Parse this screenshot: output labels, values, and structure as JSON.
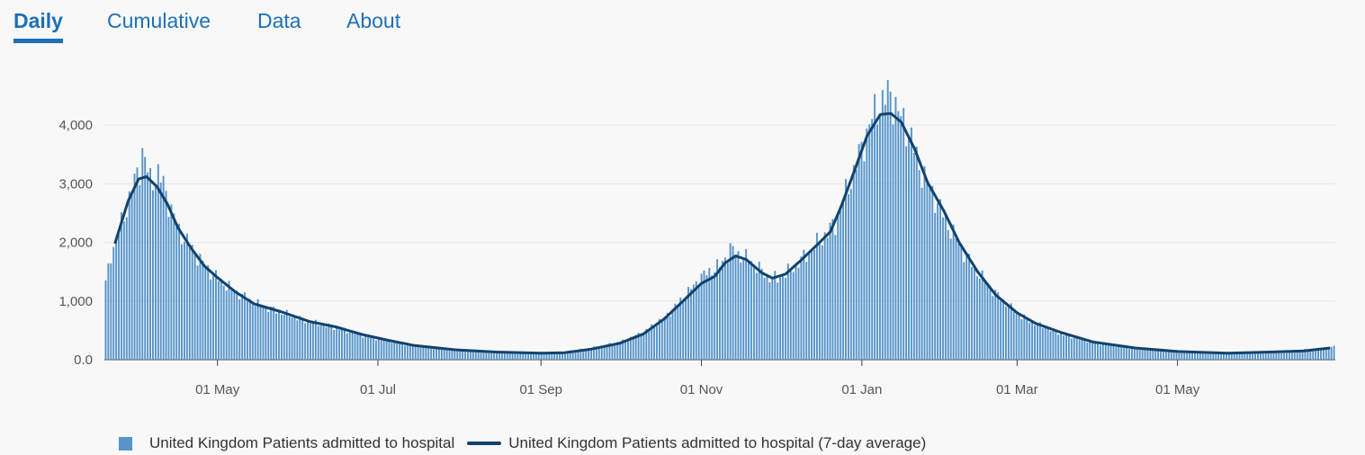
{
  "tabs": [
    {
      "label": "Daily",
      "active": true
    },
    {
      "label": "Cumulative",
      "active": false
    },
    {
      "label": "Data",
      "active": false
    },
    {
      "label": "About",
      "active": false
    }
  ],
  "colors": {
    "bar": "#5694ca",
    "line": "#12436d",
    "tab": "#1d70b8",
    "grid": "#e6e6e6"
  },
  "chart_data": {
    "type": "bar",
    "x_start": "2020-03-19",
    "x_end": "2021-06-30",
    "ylim": [
      0,
      4600
    ],
    "yticks": [
      0,
      1000,
      2000,
      3000,
      4000
    ],
    "ytick_labels": [
      "0.0",
      "1,000",
      "2,000",
      "3,000",
      "4,000"
    ],
    "xticks": [
      "2020-05-01",
      "2020-07-01",
      "2020-09-01",
      "2020-11-01",
      "2021-01-01",
      "2021-03-01",
      "2021-05-01"
    ],
    "xtick_labels": [
      "01 May",
      "01 Jul",
      "01 Sep",
      "01 Nov",
      "01 Jan",
      "01 Mar",
      "01 May"
    ],
    "grid": true,
    "legend_position": "bottom",
    "series": [
      {
        "name": "United Kingdom Patients admitted to hospital",
        "type": "bar",
        "points": [
          [
            "2020-03-19",
            1300
          ],
          [
            "2020-03-21",
            1800
          ],
          [
            "2020-03-23",
            2050
          ],
          [
            "2020-03-26",
            2450
          ],
          [
            "2020-03-29",
            2900
          ],
          [
            "2020-04-01",
            3300
          ],
          [
            "2020-04-02",
            3550
          ],
          [
            "2020-04-05",
            3050
          ],
          [
            "2020-04-08",
            3150
          ],
          [
            "2020-04-10",
            3000
          ],
          [
            "2020-04-13",
            2550
          ],
          [
            "2020-04-16",
            2200
          ],
          [
            "2020-04-20",
            1950
          ],
          [
            "2020-04-24",
            1700
          ],
          [
            "2020-04-28",
            1500
          ],
          [
            "2020-05-03",
            1300
          ],
          [
            "2020-05-08",
            1150
          ],
          [
            "2020-05-15",
            960
          ],
          [
            "2020-05-25",
            800
          ],
          [
            "2020-06-05",
            640
          ],
          [
            "2020-06-15",
            540
          ],
          [
            "2020-06-25",
            410
          ],
          [
            "2020-07-05",
            320
          ],
          [
            "2020-07-15",
            230
          ],
          [
            "2020-07-30",
            170
          ],
          [
            "2020-08-15",
            130
          ],
          [
            "2020-08-31",
            110
          ],
          [
            "2020-09-10",
            130
          ],
          [
            "2020-09-20",
            200
          ],
          [
            "2020-10-01",
            300
          ],
          [
            "2020-10-10",
            470
          ],
          [
            "2020-10-18",
            720
          ],
          [
            "2020-10-25",
            1050
          ],
          [
            "2020-11-01",
            1420
          ],
          [
            "2020-11-05",
            1530
          ],
          [
            "2020-11-08",
            1600
          ],
          [
            "2020-11-12",
            1880
          ],
          [
            "2020-11-15",
            1800
          ],
          [
            "2020-11-20",
            1680
          ],
          [
            "2020-11-26",
            1420
          ],
          [
            "2020-11-30",
            1380
          ],
          [
            "2020-12-04",
            1500
          ],
          [
            "2020-12-10",
            1740
          ],
          [
            "2020-12-16",
            2020
          ],
          [
            "2020-12-22",
            2320
          ],
          [
            "2020-12-27",
            2950
          ],
          [
            "2021-01-01",
            3600
          ],
          [
            "2021-01-04",
            4000
          ],
          [
            "2021-01-07",
            4300
          ],
          [
            "2021-01-12",
            4550
          ],
          [
            "2021-01-15",
            4200
          ],
          [
            "2021-01-19",
            3900
          ],
          [
            "2021-01-23",
            3300
          ],
          [
            "2021-01-28",
            2850
          ],
          [
            "2021-02-03",
            2300
          ],
          [
            "2021-02-08",
            1900
          ],
          [
            "2021-02-14",
            1500
          ],
          [
            "2021-02-21",
            1130
          ],
          [
            "2021-03-01",
            790
          ],
          [
            "2021-03-08",
            620
          ],
          [
            "2021-03-18",
            440
          ],
          [
            "2021-03-30",
            290
          ],
          [
            "2021-04-15",
            190
          ],
          [
            "2021-05-01",
            140
          ],
          [
            "2021-05-15",
            110
          ],
          [
            "2021-06-01",
            130
          ],
          [
            "2021-06-15",
            150
          ],
          [
            "2021-06-25",
            190
          ],
          [
            "2021-06-30",
            220
          ]
        ]
      },
      {
        "name": "United Kingdom Patients admitted to hospital (7-day average)",
        "type": "line",
        "points": [
          [
            "2020-03-23",
            1980
          ],
          [
            "2020-03-28",
            2700
          ],
          [
            "2020-04-01",
            3080
          ],
          [
            "2020-04-04",
            3120
          ],
          [
            "2020-04-08",
            2950
          ],
          [
            "2020-04-12",
            2650
          ],
          [
            "2020-04-16",
            2250
          ],
          [
            "2020-04-21",
            1900
          ],
          [
            "2020-04-26",
            1600
          ],
          [
            "2020-05-01",
            1400
          ],
          [
            "2020-05-08",
            1150
          ],
          [
            "2020-05-15",
            950
          ],
          [
            "2020-05-25",
            820
          ],
          [
            "2020-06-05",
            650
          ],
          [
            "2020-06-15",
            560
          ],
          [
            "2020-06-25",
            430
          ],
          [
            "2020-07-05",
            330
          ],
          [
            "2020-07-15",
            240
          ],
          [
            "2020-07-30",
            170
          ],
          [
            "2020-08-15",
            130
          ],
          [
            "2020-09-01",
            110
          ],
          [
            "2020-09-10",
            120
          ],
          [
            "2020-09-20",
            180
          ],
          [
            "2020-10-01",
            280
          ],
          [
            "2020-10-10",
            440
          ],
          [
            "2020-10-18",
            700
          ],
          [
            "2020-10-25",
            1000
          ],
          [
            "2020-11-01",
            1300
          ],
          [
            "2020-11-06",
            1420
          ],
          [
            "2020-11-10",
            1650
          ],
          [
            "2020-11-14",
            1770
          ],
          [
            "2020-11-18",
            1710
          ],
          [
            "2020-11-24",
            1480
          ],
          [
            "2020-11-28",
            1390
          ],
          [
            "2020-12-03",
            1460
          ],
          [
            "2020-12-09",
            1700
          ],
          [
            "2020-12-15",
            1960
          ],
          [
            "2020-12-20",
            2180
          ],
          [
            "2020-12-24",
            2600
          ],
          [
            "2020-12-29",
            3200
          ],
          [
            "2021-01-03",
            3820
          ],
          [
            "2021-01-08",
            4180
          ],
          [
            "2021-01-12",
            4200
          ],
          [
            "2021-01-16",
            4050
          ],
          [
            "2021-01-21",
            3600
          ],
          [
            "2021-01-26",
            3020
          ],
          [
            "2021-02-01",
            2550
          ],
          [
            "2021-02-07",
            2000
          ],
          [
            "2021-02-14",
            1500
          ],
          [
            "2021-02-21",
            1100
          ],
          [
            "2021-03-01",
            800
          ],
          [
            "2021-03-08",
            620
          ],
          [
            "2021-03-18",
            460
          ],
          [
            "2021-03-30",
            300
          ],
          [
            "2021-04-15",
            200
          ],
          [
            "2021-05-01",
            140
          ],
          [
            "2021-05-20",
            110
          ],
          [
            "2021-06-05",
            130
          ],
          [
            "2021-06-18",
            150
          ],
          [
            "2021-06-28",
            200
          ]
        ]
      }
    ]
  }
}
